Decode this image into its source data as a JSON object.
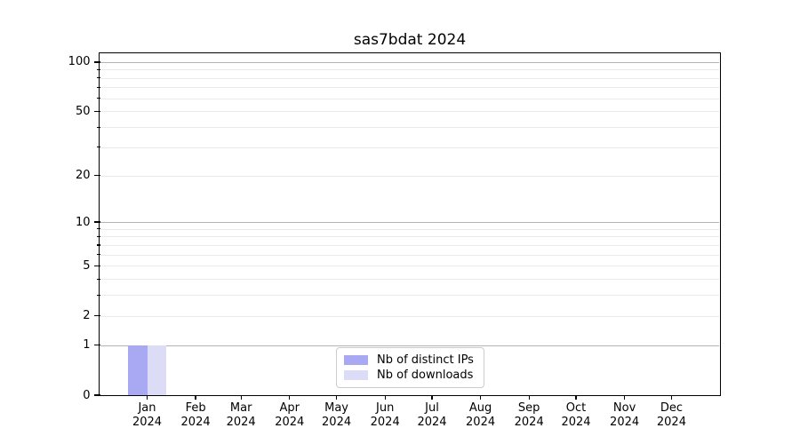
{
  "figure": {
    "background": "#ffffff"
  },
  "chart_data": {
    "type": "bar",
    "title": "sas7bdat 2024",
    "categories": [
      "Jan 2024",
      "Feb 2024",
      "Mar 2024",
      "Apr 2024",
      "May 2024",
      "Jun 2024",
      "Jul 2024",
      "Aug 2024",
      "Sep 2024",
      "Oct 2024",
      "Nov 2024",
      "Dec 2024"
    ],
    "x_tick_labels": [
      {
        "month": "Jan",
        "year": "2024"
      },
      {
        "month": "Feb",
        "year": "2024"
      },
      {
        "month": "Mar",
        "year": "2024"
      },
      {
        "month": "Apr",
        "year": "2024"
      },
      {
        "month": "May",
        "year": "2024"
      },
      {
        "month": "Jun",
        "year": "2024"
      },
      {
        "month": "Jul",
        "year": "2024"
      },
      {
        "month": "Aug",
        "year": "2024"
      },
      {
        "month": "Sep",
        "year": "2024"
      },
      {
        "month": "Oct",
        "year": "2024"
      },
      {
        "month": "Nov",
        "year": "2024"
      },
      {
        "month": "Dec",
        "year": "2024"
      }
    ],
    "series": [
      {
        "name": "Nb of distinct IPs",
        "color": "#a9a9f3",
        "values": [
          1,
          0,
          0,
          0,
          0,
          0,
          0,
          0,
          0,
          0,
          0,
          0
        ]
      },
      {
        "name": "Nb of downloads",
        "color": "#dcdcf7",
        "values": [
          1,
          0,
          0,
          0,
          0,
          0,
          0,
          0,
          0,
          0,
          0,
          0
        ]
      }
    ],
    "y_axis": {
      "scale": "log1p",
      "labeled_ticks": [
        0,
        1,
        2,
        5,
        10,
        20,
        50,
        100
      ],
      "major_grid_ticks": [
        1,
        10,
        100
      ],
      "minor_grid_ticks": [
        2,
        3,
        4,
        5,
        6,
        7,
        8,
        9,
        20,
        30,
        40,
        50,
        60,
        70,
        80,
        90
      ],
      "ylim": [
        0,
        113
      ]
    },
    "legend": {
      "position": "lower center"
    },
    "grid": {
      "major_color": "#b3b3b3",
      "minor_color": "#eaeaea"
    },
    "axis_color": "#000000"
  }
}
